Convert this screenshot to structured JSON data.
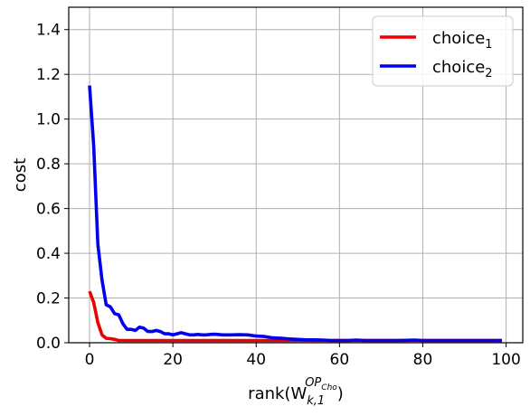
{
  "chart_data": {
    "type": "line",
    "xlabel": {
      "prefix": "rank(W",
      "sub": "k,1",
      "sup_main": "OP",
      "sup_sub": "Cho",
      "suffix": ")"
    },
    "ylabel": "cost",
    "xlim": [
      -5,
      104
    ],
    "ylim": [
      0,
      1.5
    ],
    "xticks": [
      0,
      20,
      40,
      60,
      80,
      100
    ],
    "yticks": [
      0.0,
      0.2,
      0.4,
      0.6,
      0.8,
      1.0,
      1.2,
      1.4
    ],
    "xtick_labels": [
      "0",
      "20",
      "40",
      "60",
      "80",
      "100"
    ],
    "ytick_labels": [
      "0.0",
      "0.2",
      "0.4",
      "0.6",
      "0.8",
      "1.0",
      "1.2",
      "1.4"
    ],
    "grid": true,
    "legend_position": "top-right",
    "series": [
      {
        "name": "choice",
        "name_sub": "1",
        "color": "#ee0000",
        "x": [
          0,
          1,
          2,
          3,
          4,
          5,
          6,
          7,
          8,
          9,
          10,
          12,
          14,
          16,
          18,
          20,
          25,
          30,
          35,
          40,
          45,
          50,
          55,
          60,
          65,
          70,
          75,
          80,
          85,
          90,
          95,
          99
        ],
        "y": [
          0.23,
          0.18,
          0.09,
          0.035,
          0.02,
          0.018,
          0.015,
          0.01,
          0.01,
          0.01,
          0.01,
          0.01,
          0.01,
          0.01,
          0.01,
          0.01,
          0.01,
          0.01,
          0.01,
          0.01,
          0.01,
          0.01,
          0.01,
          0.01,
          0.01,
          0.01,
          0.01,
          0.01,
          0.01,
          0.01,
          0.01,
          0.01
        ]
      },
      {
        "name": "choice",
        "name_sub": "2",
        "color": "#0000ee",
        "x": [
          0,
          1,
          2,
          3,
          4,
          5,
          6,
          7,
          8,
          9,
          10,
          11,
          12,
          13,
          14,
          15,
          16,
          17,
          18,
          19,
          20,
          21,
          22,
          23,
          24,
          25,
          26,
          27,
          28,
          29,
          30,
          32,
          34,
          36,
          38,
          40,
          42,
          44,
          46,
          48,
          50,
          52,
          54,
          56,
          58,
          60,
          62,
          64,
          66,
          68,
          70,
          72,
          74,
          76,
          78,
          80,
          82,
          84,
          86,
          88,
          90,
          92,
          94,
          96,
          98,
          99
        ],
        "y": [
          1.15,
          0.88,
          0.44,
          0.28,
          0.17,
          0.16,
          0.13,
          0.125,
          0.085,
          0.06,
          0.06,
          0.055,
          0.07,
          0.065,
          0.05,
          0.05,
          0.055,
          0.05,
          0.04,
          0.04,
          0.035,
          0.04,
          0.045,
          0.04,
          0.035,
          0.035,
          0.037,
          0.035,
          0.035,
          0.037,
          0.038,
          0.035,
          0.035,
          0.036,
          0.035,
          0.03,
          0.028,
          0.022,
          0.02,
          0.017,
          0.015,
          0.013,
          0.013,
          0.012,
          0.01,
          0.01,
          0.01,
          0.012,
          0.01,
          0.01,
          0.01,
          0.01,
          0.01,
          0.011,
          0.012,
          0.01,
          0.01,
          0.01,
          0.01,
          0.01,
          0.01,
          0.01,
          0.01,
          0.01,
          0.01,
          0.01
        ]
      }
    ]
  }
}
